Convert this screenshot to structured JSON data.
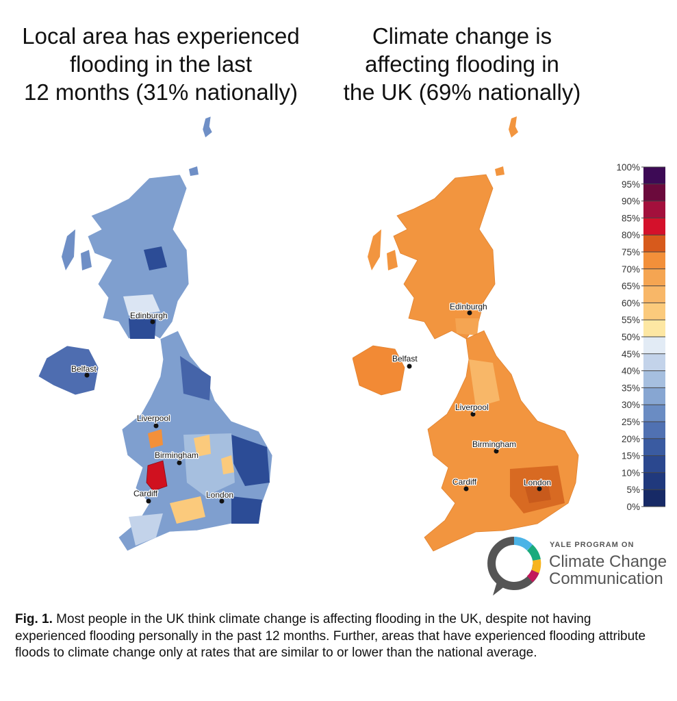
{
  "titles": {
    "left": "Local area has experienced\nflooding in the last\n12 months (31% nationally)",
    "right": "Climate change is\naffecting flooding in\nthe UK (69% nationally)"
  },
  "cities": {
    "edinburgh": "Edinburgh",
    "belfast": "Belfast",
    "liverpool": "Liverpool",
    "birmingham": "Birmingham",
    "cardiff": "Cardiff",
    "london": "London"
  },
  "legend": {
    "ticks": [
      "100%",
      "95%",
      "90%",
      "85%",
      "80%",
      "75%",
      "70%",
      "65%",
      "60%",
      "55%",
      "50%",
      "45%",
      "40%",
      "35%",
      "30%",
      "25%",
      "20%",
      "15%",
      "10%",
      "5%",
      "0%"
    ],
    "colors": [
      "#3d0a55",
      "#6b0a3c",
      "#a3103c",
      "#d4112b",
      "#d75a1c",
      "#f3903a",
      "#f5a552",
      "#f8b768",
      "#fbca7c",
      "#fde7a3",
      "#e2ebf5",
      "#c3d3ea",
      "#a6bfdf",
      "#87a6d2",
      "#6a8cc3",
      "#5071b2",
      "#3a5ba1",
      "#2b488f",
      "#20397d",
      "#172a66"
    ]
  },
  "maps": {
    "left": {
      "national_percent": 31,
      "base_color": "#7f9fcf",
      "flood_hotspot_color": "#d0111f"
    },
    "right": {
      "national_percent": 69,
      "base_color": "#f2953f"
    }
  },
  "logo": {
    "top": "YALE PROGRAM ON",
    "line1": "Climate Change",
    "line2": "Communication"
  },
  "caption": {
    "label": "Fig. 1.",
    "text": " Most people in the UK think climate change is affecting flooding in the UK, despite not having experienced flooding personally in the past 12 months. Further, areas that have experienced flooding attribute floods to climate change only at rates that are similar to or lower than the national average."
  }
}
